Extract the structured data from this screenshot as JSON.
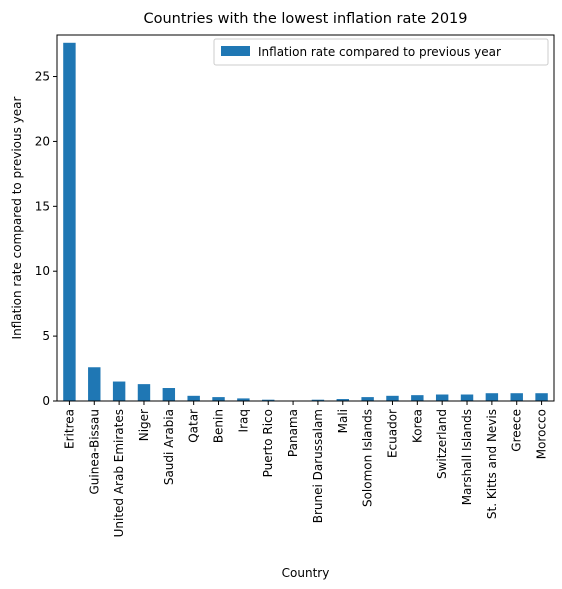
{
  "chart_data": {
    "type": "bar",
    "title": "Countries with the lowest inflation rate 2019",
    "xlabel": "Country",
    "ylabel": "Inflation rate compared to previous year",
    "ylim": [
      0,
      28.2
    ],
    "yticks": [
      0,
      5,
      10,
      15,
      20,
      25
    ],
    "grid": false,
    "legend_position": "top-right",
    "categories": [
      "Eritrea",
      "Guinea-Bissau",
      "United Arab Emirates",
      "Niger",
      "Saudi Arabia",
      "Qatar",
      "Benin",
      "Iraq",
      "Puerto Rico",
      "Panama",
      "Brunei Darussalam",
      "Mali",
      "Solomon Islands",
      "Ecuador",
      "Korea",
      "Switzerland",
      "Marshall Islands",
      "St. Kitts and Nevis",
      "Greece",
      "Morocco"
    ],
    "series": [
      {
        "name": "Inflation rate compared to previous year",
        "color": "#1f77b4",
        "values": [
          27.6,
          2.6,
          1.5,
          1.3,
          1.0,
          0.4,
          0.3,
          0.2,
          0.1,
          0.0,
          0.1,
          0.15,
          0.3,
          0.4,
          0.45,
          0.5,
          0.5,
          0.6,
          0.6,
          0.6
        ]
      }
    ]
  }
}
